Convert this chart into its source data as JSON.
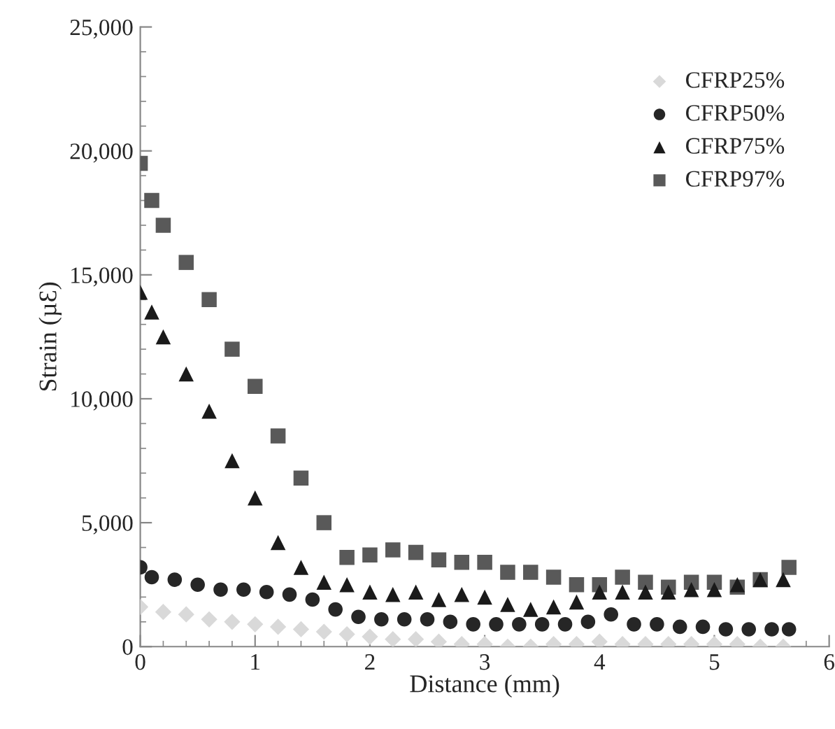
{
  "chart_data": {
    "type": "scatter",
    "xlabel": "Distance (mm)",
    "ylabel": "Strain (µƐ)",
    "xlim": [
      0,
      6
    ],
    "xticks": [
      0,
      1,
      2,
      3,
      4,
      5,
      6
    ],
    "ylim": [
      0,
      25000
    ],
    "yticks": [
      {
        "value": 0,
        "label": "0"
      },
      {
        "value": 5000,
        "label": "5,000"
      },
      {
        "value": 10000,
        "label": "10,000"
      },
      {
        "value": 15000,
        "label": "15,000"
      },
      {
        "value": 20000,
        "label": "20,000"
      },
      {
        "value": 25000,
        "label": "25,000"
      }
    ],
    "grid": false,
    "legend": "top right",
    "series": [
      {
        "name": "CFRP25%",
        "color": "#d9d9d9",
        "marker": "diamond",
        "x": [
          0,
          0.2,
          0.4,
          0.6,
          0.8,
          1.0,
          1.2,
          1.4,
          1.6,
          1.8,
          2.0,
          2.2,
          2.4,
          2.6,
          2.8,
          3.0,
          3.2,
          3.4,
          3.6,
          3.8,
          4.0,
          4.2,
          4.4,
          4.6,
          4.8,
          5.0,
          5.2,
          5.4,
          5.6
        ],
        "values": [
          1600,
          1400,
          1300,
          1100,
          1000,
          900,
          800,
          700,
          600,
          500,
          400,
          300,
          300,
          200,
          100,
          100,
          0,
          0,
          100,
          100,
          200,
          100,
          100,
          100,
          100,
          100,
          100,
          0,
          0
        ]
      },
      {
        "name": "CFRP50%",
        "color": "#262626",
        "marker": "circle",
        "x": [
          0,
          0.1,
          0.3,
          0.5,
          0.7,
          0.9,
          1.1,
          1.3,
          1.5,
          1.7,
          1.9,
          2.1,
          2.3,
          2.5,
          2.7,
          2.9,
          3.1,
          3.3,
          3.5,
          3.7,
          3.9,
          4.1,
          4.3,
          4.5,
          4.7,
          4.9,
          5.1,
          5.3,
          5.5,
          5.65
        ],
        "values": [
          3200,
          2800,
          2700,
          2500,
          2300,
          2300,
          2200,
          2100,
          1900,
          1500,
          1200,
          1100,
          1100,
          1100,
          1000,
          900,
          900,
          900,
          900,
          900,
          1000,
          1300,
          900,
          900,
          800,
          800,
          700,
          700,
          700,
          700
        ]
      },
      {
        "name": "CFRP75%",
        "color": "#1a1a1a",
        "marker": "triangle",
        "x": [
          0,
          0.1,
          0.2,
          0.4,
          0.6,
          0.8,
          1.0,
          1.2,
          1.4,
          1.6,
          1.8,
          2.0,
          2.2,
          2.4,
          2.6,
          2.8,
          3.0,
          3.2,
          3.4,
          3.6,
          3.8,
          4.0,
          4.2,
          4.4,
          4.6,
          4.8,
          5.0,
          5.2,
          5.4,
          5.6
        ],
        "values": [
          14300,
          13500,
          12500,
          11000,
          9500,
          7500,
          6000,
          4200,
          3200,
          2600,
          2500,
          2200,
          2100,
          2200,
          1900,
          2100,
          2000,
          1700,
          1500,
          1600,
          1800,
          2200,
          2200,
          2200,
          2200,
          2300,
          2300,
          2500,
          2700,
          2700
        ]
      },
      {
        "name": "CFRP97%",
        "color": "#595959",
        "marker": "square",
        "x": [
          0,
          0.1,
          0.2,
          0.4,
          0.6,
          0.8,
          1.0,
          1.2,
          1.4,
          1.6,
          1.8,
          2.0,
          2.2,
          2.4,
          2.6,
          2.8,
          3.0,
          3.2,
          3.4,
          3.6,
          3.8,
          4.0,
          4.2,
          4.4,
          4.6,
          4.8,
          5.0,
          5.2,
          5.4,
          5.65
        ],
        "values": [
          19500,
          18000,
          17000,
          15500,
          14000,
          12000,
          10500,
          8500,
          6800,
          5000,
          3600,
          3700,
          3900,
          3800,
          3500,
          3400,
          3400,
          3000,
          3000,
          2800,
          2500,
          2500,
          2800,
          2600,
          2400,
          2600,
          2600,
          2400,
          2700,
          3200
        ]
      }
    ]
  }
}
